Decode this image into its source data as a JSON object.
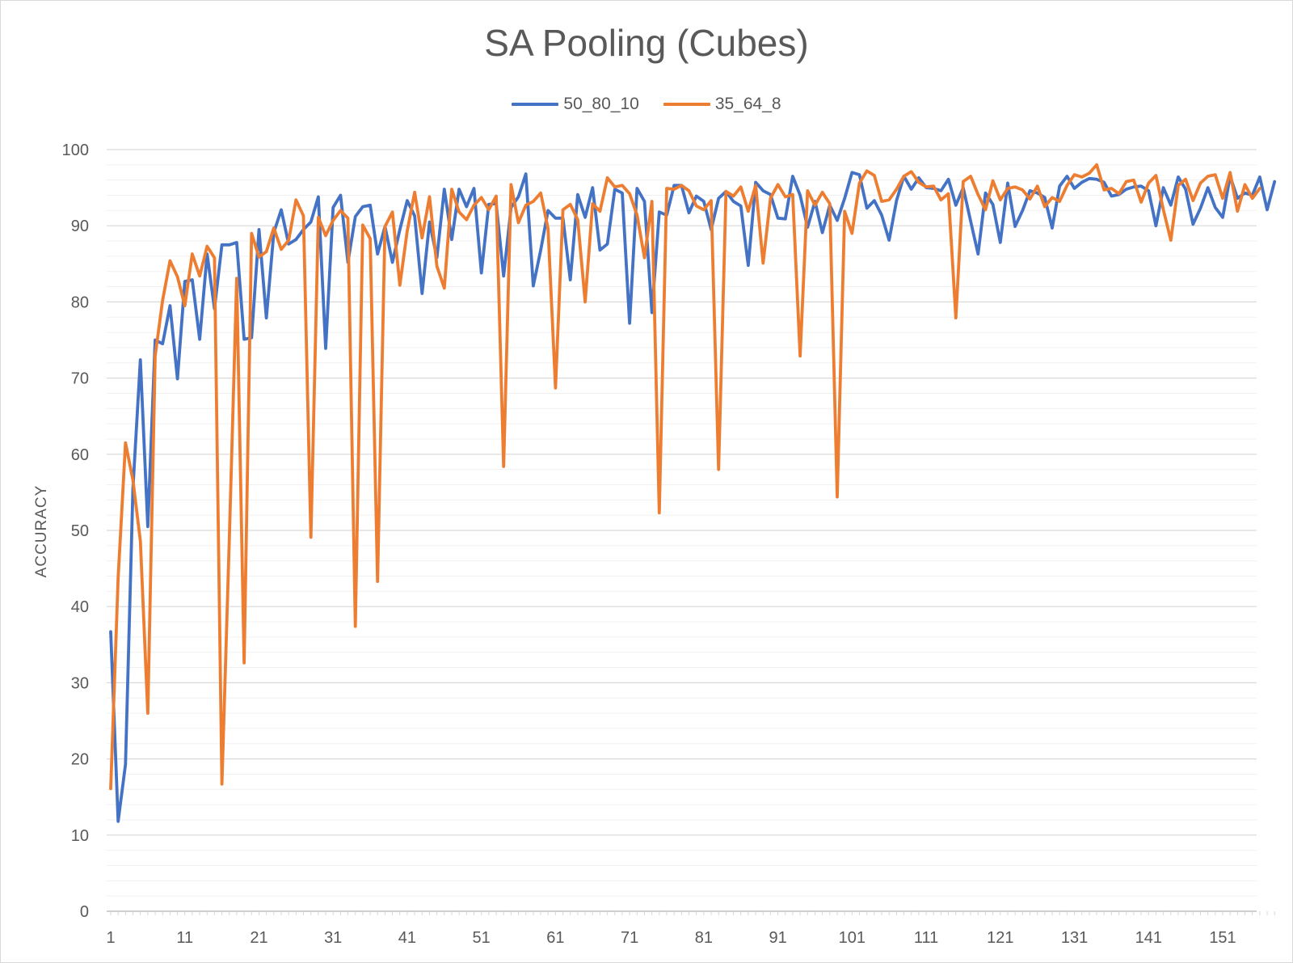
{
  "chart_data": {
    "type": "line",
    "title": "SA Pooling (Cubes)",
    "xlabel": "",
    "ylabel": "ACCURACY",
    "ylim": [
      0,
      100
    ],
    "y_ticks": [
      0,
      10,
      20,
      30,
      40,
      50,
      60,
      70,
      80,
      90,
      100
    ],
    "x_tick_labels": [
      1,
      11,
      21,
      31,
      41,
      51,
      61,
      71,
      81,
      91,
      101,
      111,
      121,
      131,
      141,
      151
    ],
    "grid": "major and minor horizontal",
    "legend_position": "top",
    "x_start": 1,
    "series": [
      {
        "name": "50_80_10",
        "color": "#4472c4",
        "values": [
          36.7,
          11.8,
          19.3,
          55.5,
          72.4,
          50.5,
          75,
          74.5,
          79.5,
          69.9,
          82.7,
          82.9,
          75.1,
          86.3,
          79.1,
          87.5,
          87.5,
          87.8,
          75.1,
          75.3,
          89.5,
          77.9,
          89.1,
          92.1,
          87.6,
          88.2,
          89.5,
          90.5,
          93.8,
          73.9,
          92.4,
          94,
          85.2,
          91.2,
          92.5,
          92.7,
          86.3,
          89.9,
          85.2,
          89.5,
          93.3,
          91.3,
          81.1,
          90.5,
          85.8,
          94.8,
          88.2,
          94.8,
          92.5,
          94.9,
          83.8,
          92.8,
          92.9,
          83.4,
          92.4,
          93.8,
          96.8,
          82.1,
          86.8,
          92,
          91,
          91,
          82.9,
          94.1,
          91.1,
          95,
          86.8,
          87.6,
          94.8,
          94.3,
          77.2,
          94.9,
          93.2,
          78.6,
          91.8,
          91.4,
          95.3,
          95.3,
          91.7,
          93.9,
          93.2,
          89.5,
          93.6,
          94.5,
          93.2,
          92.6,
          84.8,
          95.7,
          94.6,
          94.1,
          91,
          90.9,
          96.5,
          94,
          89.8,
          93.2,
          89.1,
          92.7,
          90.7,
          93.6,
          97,
          96.7,
          92.3,
          93.3,
          91.4,
          88.1,
          93.3,
          96.5,
          94.8,
          96.3,
          95,
          94.9,
          94.6,
          96.1,
          92.7,
          95,
          90.6,
          86.3,
          94.3,
          92.8,
          87.8,
          95.6,
          89.9,
          92,
          94.6,
          94.3,
          93.7,
          89.7,
          95.2,
          96.5,
          94.9,
          95.7,
          96.2,
          96.1,
          95.7,
          93.9,
          94.1,
          94.8,
          95.1,
          95.2,
          94.6,
          90,
          95,
          92.7,
          96.4,
          94.8,
          90.2,
          92.3,
          95,
          92.4,
          91.1,
          96.5,
          93.6,
          94.3,
          94,
          96.4,
          92.1,
          95.8
        ]
      },
      {
        "name": "35_64_8",
        "color": "#ed7d31",
        "values": [
          16.1,
          43.8,
          61.5,
          56.6,
          48.6,
          26,
          72.9,
          80.2,
          85.4,
          83.3,
          79.5,
          86.3,
          83.4,
          87.3,
          85.8,
          16.7,
          49,
          83.1,
          32.6,
          89,
          85.9,
          86.6,
          89.7,
          86.9,
          88.1,
          93.4,
          91.3,
          49.1,
          91.1,
          88.7,
          90.7,
          92,
          91,
          37.4,
          90.1,
          88.3,
          43.3,
          89.9,
          91.8,
          82.2,
          89.3,
          94.4,
          88.4,
          93.8,
          84.7,
          81.8,
          94.8,
          91.8,
          90.8,
          92.7,
          93.7,
          92.1,
          93.9,
          58.4,
          95.4,
          90.4,
          92.7,
          93.2,
          94.3,
          89.6,
          68.7,
          92.1,
          92.8,
          90.8,
          80,
          92.9,
          91.9,
          96.3,
          95.1,
          95.3,
          94.2,
          91.4,
          85.8,
          93.2,
          52.3,
          94.9,
          94.8,
          95.3,
          94.6,
          92.6,
          92.1,
          93.3,
          58,
          94.5,
          93.9,
          95.1,
          91.9,
          95.3,
          85.1,
          93.6,
          95.4,
          93.8,
          94.1,
          72.9,
          94.6,
          92.7,
          94.4,
          92.9,
          54.4,
          91.9,
          89,
          95.6,
          97.2,
          96.6,
          93.2,
          93.4,
          94.8,
          96.5,
          97.1,
          95.7,
          95.1,
          95.2,
          93.4,
          94.2,
          77.9,
          95.8,
          96.5,
          94.1,
          92.1,
          95.9,
          93.4,
          94.9,
          95.1,
          94.7,
          93.5,
          95.2,
          92.5,
          93.7,
          93.2,
          95.3,
          96.7,
          96.4,
          96.9,
          98,
          94.7,
          94.9,
          94.2,
          95.8,
          96,
          93.1,
          95.6,
          96.6,
          92.1,
          88.1,
          95.3,
          96.1,
          93.3,
          95.6,
          96.5,
          96.7,
          93.6,
          97,
          91.9,
          95.4,
          93.6,
          94.9
        ]
      }
    ]
  }
}
